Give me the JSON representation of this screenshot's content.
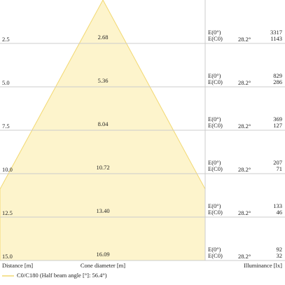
{
  "rows": [
    {
      "distance": "2.5",
      "diameter": "2.68",
      "e0_label": "E(0°)",
      "ec0_label": "E(C0)",
      "angle": "28.2°",
      "e0": "3317",
      "ec0": "1143"
    },
    {
      "distance": "5.0",
      "diameter": "5.36",
      "e0_label": "E(0°)",
      "ec0_label": "E(C0)",
      "angle": "28.2°",
      "e0": "829",
      "ec0": "286"
    },
    {
      "distance": "7.5",
      "diameter": "8.04",
      "e0_label": "E(0°)",
      "ec0_label": "E(C0)",
      "angle": "28.2°",
      "e0": "369",
      "ec0": "127"
    },
    {
      "distance": "10.0",
      "diameter": "10.72",
      "e0_label": "E(0°)",
      "ec0_label": "E(C0)",
      "angle": "28.2°",
      "e0": "207",
      "ec0": "71"
    },
    {
      "distance": "12.5",
      "diameter": "13.40",
      "e0_label": "E(0°)",
      "ec0_label": "E(C0)",
      "angle": "28.2°",
      "e0": "133",
      "ec0": "46"
    },
    {
      "distance": "15.0",
      "diameter": "16.09",
      "e0_label": "E(0°)",
      "ec0_label": "E(C0)",
      "angle": "28.2°",
      "e0": "92",
      "ec0": "32"
    }
  ],
  "footer": {
    "distance": "Distance [m]",
    "diameter": "Cone diameter [m]",
    "illuminance": "Illuminance [lx]"
  },
  "legend": {
    "label": "C0/C180 (Half beam angle [°]: 56.4°)"
  }
}
